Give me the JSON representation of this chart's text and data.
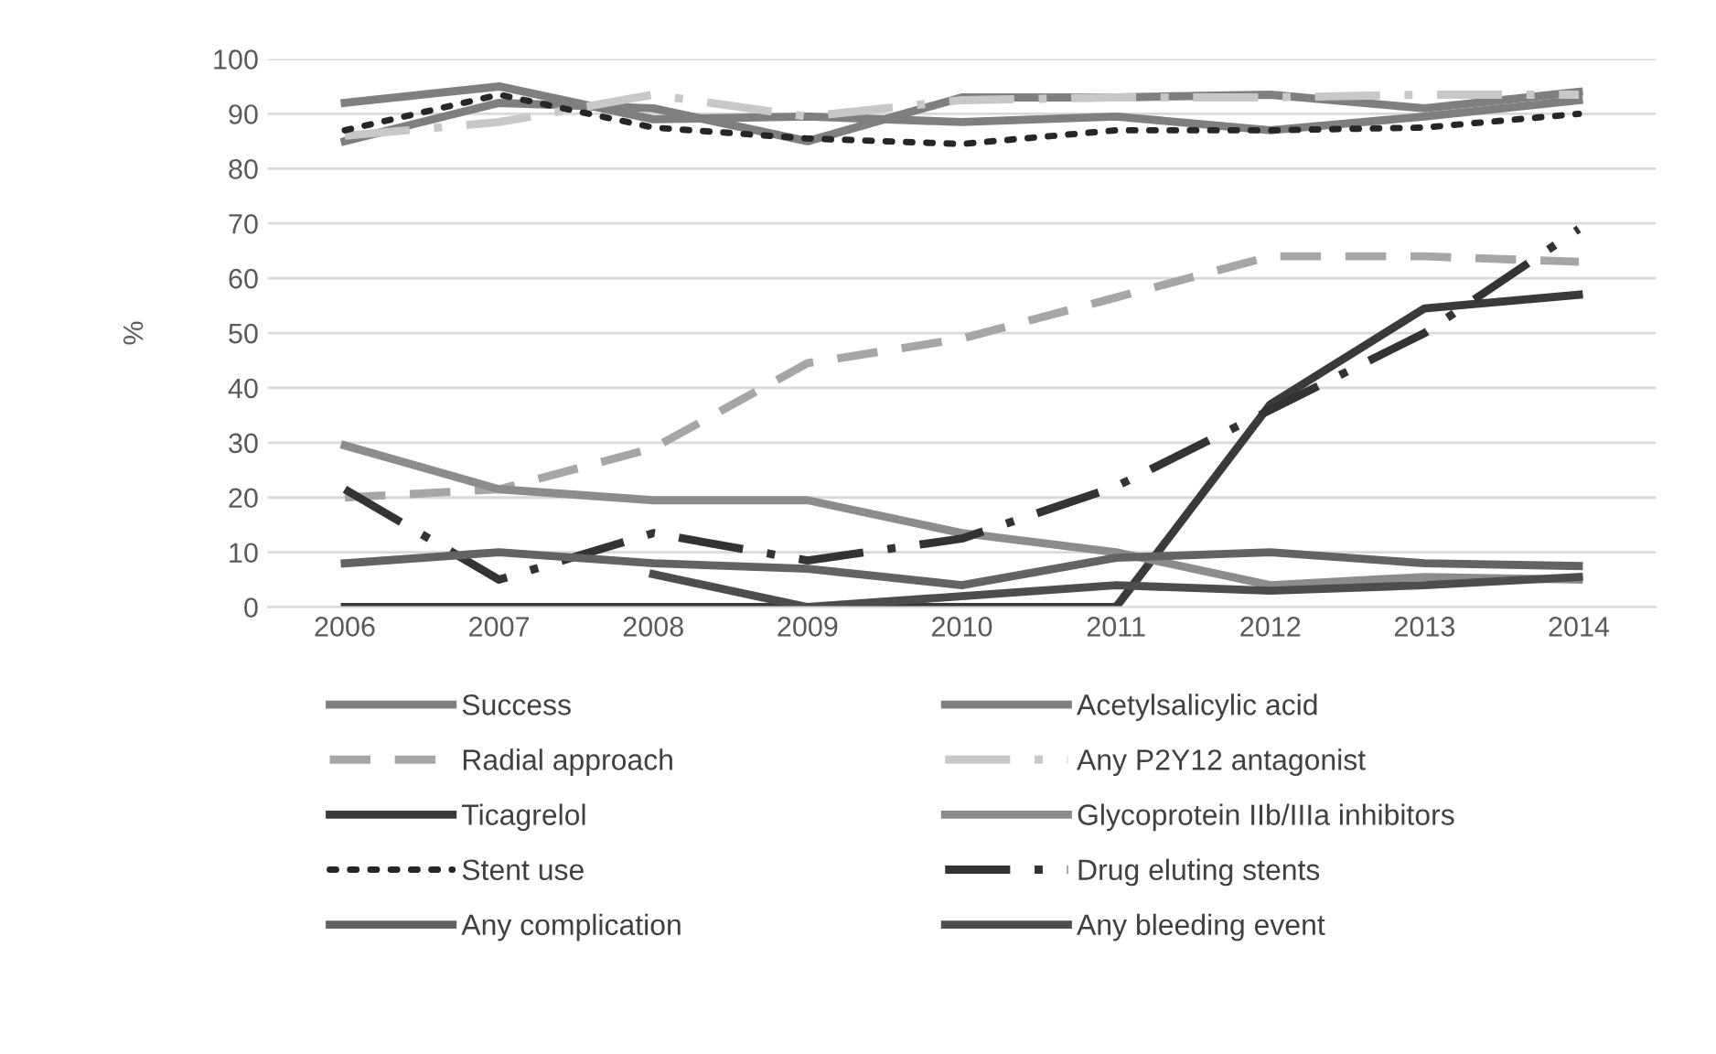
{
  "chart_data": {
    "type": "line",
    "ylabel": "%",
    "categories": [
      "2006",
      "2007",
      "2008",
      "2009",
      "2010",
      "2011",
      "2012",
      "2013",
      "2014"
    ],
    "ylim": [
      0,
      100
    ],
    "yticks": [
      0,
      10,
      20,
      30,
      40,
      50,
      60,
      70,
      80,
      90,
      100
    ],
    "grid": "y",
    "legend": "bottom",
    "marker": "none",
    "series": [
      {
        "name": "Success",
        "color": "#7f7f7f",
        "line_style": "solid",
        "values": [
          92,
          95,
          89,
          89.5,
          88.5,
          89.5,
          87,
          89.5,
          92.5
        ]
      },
      {
        "name": "Acetylsalicylic acid",
        "color": "#7f7f7f",
        "line_style": "solid",
        "values": [
          85,
          92,
          91,
          85,
          93,
          93,
          93.5,
          91,
          94
        ]
      },
      {
        "name": "Radial approach",
        "color": "#a6a6a6",
        "line_style": "dashed",
        "values": [
          20,
          21.5,
          29,
          44.5,
          49,
          56.5,
          64,
          64,
          63
        ]
      },
      {
        "name": "Any P2Y12 antagonist",
        "color": "#c8c8c8",
        "line_style": "dashdot",
        "values": [
          86,
          88.5,
          93.5,
          89.5,
          92.5,
          93,
          93,
          93.5,
          93.5
        ]
      },
      {
        "name": "Ticagrelol",
        "color": "#3a3a3a",
        "line_style": "solid",
        "values": [
          0,
          0,
          0,
          0,
          0,
          0,
          37,
          54.5,
          57
        ]
      },
      {
        "name": "Glycoprotein IIb/IIIa inhibitors",
        "color": "#8c8c8c",
        "line_style": "solid",
        "values": [
          29.5,
          21.5,
          19.5,
          19.5,
          13.5,
          10,
          4,
          5.5,
          5
        ]
      },
      {
        "name": "Stent use",
        "color": "#262626",
        "line_style": "dotted",
        "values": [
          87,
          93.5,
          87.5,
          85.5,
          84.5,
          87,
          87,
          87.5,
          90
        ]
      },
      {
        "name": "Drug eluting stents",
        "color": "#333333",
        "line_style": "dashdot",
        "values": [
          21.5,
          5,
          13.5,
          8.5,
          12.5,
          22,
          36,
          50,
          69
        ]
      },
      {
        "name": "Any complication",
        "color": "#636363",
        "line_style": "solid",
        "values": [
          8,
          10,
          8,
          7,
          4,
          9,
          10,
          8,
          7.5
        ]
      },
      {
        "name": "Any bleeding event",
        "color": "#4d4d4d",
        "line_style": "solid",
        "values": [
          null,
          null,
          6,
          0,
          2,
          4,
          3,
          4,
          5.5
        ]
      }
    ]
  }
}
